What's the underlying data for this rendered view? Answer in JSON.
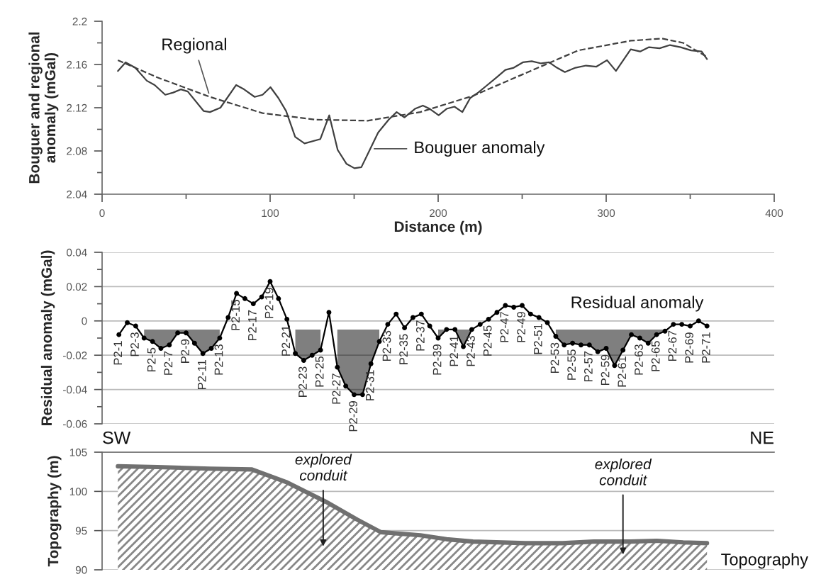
{
  "chart_data": [
    {
      "type": "line",
      "xlabel": "Distance (m)",
      "ylabel": "Bouguer and regional\nanomaly (mGal)",
      "xlim": [
        0,
        400
      ],
      "ylim": [
        2.04,
        2.2
      ],
      "xticks": [
        0,
        {
          "value": 50,
          "label": null
        },
        100,
        {
          "value": 150,
          "label": null
        },
        200,
        {
          "value": 250,
          "label": null
        },
        300,
        {
          "value": 350,
          "label": null
        },
        400
      ],
      "yticks": [
        2.04,
        {
          "value": 2.06,
          "label": null
        },
        2.08,
        {
          "value": 2.1,
          "label": null
        },
        2.12,
        {
          "value": 2.14,
          "label": null
        },
        2.16,
        {
          "value": 2.18,
          "label": null
        },
        2.2
      ],
      "grid": false,
      "line_style": "solid",
      "marker": "none",
      "series": [
        {
          "name": "Bouguer anomaly",
          "color": "#404040",
          "x": [
            9.4,
            14,
            19.7,
            26.6,
            31.3,
            37.6,
            42.3,
            47,
            51,
            60.4,
            64.2,
            70.4,
            79.8,
            84.5,
            90.8,
            95.5,
            100.2,
            104.9,
            109.5,
            114.9,
            120.5,
            129.9,
            135.2,
            140.2,
            145.5,
            150.2,
            154.3,
            159.6,
            164.3,
            170.6,
            175.3,
            180,
            186.2,
            190.9,
            195,
            200.3,
            205,
            209.7,
            214.4,
            219.1,
            223.8,
            228.5,
            234.7,
            240,
            245,
            250.4,
            255.7,
            261.3,
            266,
            270.7,
            275.4,
            281.7,
            288,
            294.2,
            300.5,
            305.8,
            314.6,
            320.2,
            325.5,
            331.8,
            338,
            344.3,
            350.5,
            356.8,
            360
          ],
          "values": [
            2.154,
            2.162,
            2.157,
            2.145,
            2.141,
            2.132,
            2.134,
            2.137,
            2.135,
            2.117,
            2.116,
            2.12,
            2.141,
            2.137,
            2.13,
            2.132,
            2.139,
            2.129,
            2.117,
            2.093,
            2.087,
            2.091,
            2.113,
            2.081,
            2.068,
            2.064,
            2.065,
            2.082,
            2.097,
            2.109,
            2.116,
            2.111,
            2.119,
            2.122,
            2.119,
            2.113,
            2.119,
            2.121,
            2.116,
            2.129,
            2.134,
            2.14,
            2.148,
            2.155,
            2.157,
            2.162,
            2.163,
            2.161,
            2.162,
            2.157,
            2.153,
            2.157,
            2.159,
            2.158,
            2.164,
            2.154,
            2.174,
            2.172,
            2.176,
            2.175,
            2.178,
            2.176,
            2.173,
            2.172,
            2.165
          ]
        },
        {
          "name": "Regional",
          "color": "#404040",
          "line_style": "dashed",
          "x": [
            9.4,
            32.9,
            64.2,
            95.5,
            126.8,
            158,
            189.4,
            220.7,
            252,
            283.3,
            314.6,
            333.3,
            345.8,
            360
          ],
          "values": [
            2.164,
            2.148,
            2.13,
            2.115,
            2.109,
            2.108,
            2.116,
            2.131,
            2.152,
            2.173,
            2.182,
            2.184,
            2.18,
            2.167
          ]
        }
      ]
    },
    {
      "type": "line",
      "ylabel": "Residual anomaly (mGal)",
      "xlim": [
        0,
        400
      ],
      "ylim": [
        -0.06,
        0.04
      ],
      "tick_labels": "y",
      "yticks": [
        -0.06,
        {
          "value": -0.05,
          "label": null
        },
        -0.04,
        {
          "value": -0.03,
          "label": null
        },
        -0.02,
        {
          "value": -0.01,
          "label": null
        },
        0,
        {
          "value": 0.01,
          "label": null
        },
        0.02,
        {
          "value": 0.03,
          "label": null
        },
        0.04
      ],
      "grid": "y",
      "marker": "circle",
      "line_style": "solid",
      "series": [
        {
          "name": "Residual anomaly",
          "color": "#000000",
          "x": [
            10,
            15,
            20,
            25,
            30,
            35,
            40,
            45,
            50,
            55,
            60,
            65,
            70,
            75,
            80,
            85,
            90,
            95,
            100,
            105,
            110,
            115,
            120,
            125,
            130,
            135,
            140,
            145,
            150,
            155,
            160,
            165,
            170,
            175,
            180,
            185,
            190,
            195,
            200,
            205,
            210,
            215,
            220,
            225,
            230,
            235,
            240,
            245,
            250,
            255,
            260,
            265,
            270,
            275,
            280,
            285,
            290,
            295,
            300,
            305,
            310,
            315,
            320,
            325,
            330,
            335,
            340,
            345,
            350,
            355,
            360
          ],
          "values": [
            -0.008,
            -0.001,
            -0.003,
            -0.01,
            -0.012,
            -0.016,
            -0.014,
            -0.007,
            -0.007,
            -0.013,
            -0.019,
            -0.016,
            -0.01,
            0.002,
            0.016,
            0.013,
            0.01,
            0.014,
            0.023,
            0.013,
            0.001,
            -0.019,
            -0.023,
            -0.02,
            -0.017,
            0.005,
            -0.027,
            -0.038,
            -0.043,
            -0.043,
            -0.025,
            -0.012,
            -0.002,
            0.004,
            -0.004,
            0.002,
            0.004,
            -0.003,
            -0.01,
            -0.005,
            -0.005,
            -0.015,
            -0.005,
            -0.002,
            0.001,
            0.005,
            0.009,
            0.008,
            0.009,
            0.004,
            0.002,
            -0.001,
            -0.009,
            -0.014,
            -0.013,
            -0.014,
            -0.014,
            -0.018,
            -0.016,
            -0.026,
            -0.017,
            -0.008,
            -0.01,
            -0.013,
            -0.008,
            -0.006,
            -0.002,
            -0.002,
            -0.003,
            0.0,
            -0.003
          ],
          "lower": [
            null,
            null,
            null,
            -0.01,
            -0.012,
            -0.016,
            -0.014,
            -0.007,
            -0.007,
            -0.013,
            -0.019,
            -0.016,
            -0.01,
            null,
            null,
            null,
            null,
            null,
            null,
            null,
            null,
            -0.019,
            -0.023,
            -0.02,
            -0.017,
            null,
            -0.027,
            -0.038,
            -0.043,
            -0.043,
            -0.025,
            -0.012,
            null,
            null,
            null,
            null,
            null,
            null,
            -0.01,
            -0.005,
            -0.005,
            -0.015,
            -0.005,
            null,
            null,
            null,
            null,
            null,
            null,
            null,
            null,
            null,
            -0.009,
            -0.014,
            -0.013,
            -0.014,
            -0.014,
            -0.018,
            -0.016,
            -0.026,
            -0.017,
            -0.008,
            -0.01,
            -0.013,
            -0.008,
            -0.006,
            null,
            null,
            null,
            null,
            null
          ],
          "upper": [
            null,
            null,
            null,
            -0.005,
            -0.005,
            -0.005,
            -0.005,
            -0.005,
            -0.005,
            -0.005,
            -0.005,
            -0.005,
            -0.005,
            null,
            null,
            null,
            null,
            null,
            null,
            null,
            null,
            -0.005,
            -0.005,
            -0.005,
            -0.005,
            null,
            -0.005,
            -0.005,
            -0.005,
            -0.005,
            -0.005,
            -0.005,
            null,
            null,
            null,
            null,
            null,
            null,
            -0.005,
            -0.005,
            -0.005,
            -0.005,
            -0.005,
            null,
            null,
            null,
            null,
            null,
            null,
            null,
            null,
            null,
            -0.005,
            -0.005,
            -0.005,
            -0.005,
            -0.005,
            -0.005,
            -0.005,
            -0.005,
            -0.005,
            -0.005,
            -0.005,
            -0.005,
            -0.005,
            -0.005,
            null,
            null,
            null,
            null,
            null
          ]
        }
      ],
      "annotations": [
        {
          "text": "P2-1",
          "x": 10,
          "y": -0.008
        },
        {
          "text": "P2-3",
          "x": 20,
          "y": -0.003
        },
        {
          "text": "P2-5",
          "x": 30,
          "y": -0.012
        },
        {
          "text": "P2-7",
          "x": 40,
          "y": -0.014
        },
        {
          "text": "P2-9",
          "x": 50,
          "y": -0.007
        },
        {
          "text": "P2-11",
          "x": 60,
          "y": -0.019
        },
        {
          "text": "P2-13",
          "x": 70,
          "y": -0.01
        },
        {
          "text": "P2-15",
          "x": 80,
          "y": 0.016
        },
        {
          "text": "P2-17",
          "x": 90,
          "y": 0.01
        },
        {
          "text": "P2-19",
          "x": 100,
          "y": 0.023
        },
        {
          "text": "P2-21",
          "x": 110,
          "y": 0.001
        },
        {
          "text": "P2-23",
          "x": 120,
          "y": -0.023
        },
        {
          "text": "P2-25",
          "x": 130,
          "y": -0.017
        },
        {
          "text": "P2-27",
          "x": 140,
          "y": -0.027
        },
        {
          "text": "P2-29",
          "x": 150,
          "y": -0.043
        },
        {
          "text": "P2-31",
          "x": 160,
          "y": -0.025
        },
        {
          "text": "P2-33",
          "x": 170,
          "y": -0.002
        },
        {
          "text": "P2-35",
          "x": 180,
          "y": -0.004
        },
        {
          "text": "P2-37",
          "x": 190,
          "y": 0.004
        },
        {
          "text": "P2-39",
          "x": 200,
          "y": -0.01
        },
        {
          "text": "P2-41",
          "x": 210,
          "y": -0.005
        },
        {
          "text": "P2-43",
          "x": 220,
          "y": -0.005
        },
        {
          "text": "P2-45",
          "x": 230,
          "y": 0.001
        },
        {
          "text": "P2-47",
          "x": 240,
          "y": 0.009
        },
        {
          "text": "P2-49",
          "x": 250,
          "y": 0.009
        },
        {
          "text": "P2-51",
          "x": 260,
          "y": 0.002
        },
        {
          "text": "P2-53",
          "x": 270,
          "y": -0.009
        },
        {
          "text": "P2-55",
          "x": 280,
          "y": -0.013
        },
        {
          "text": "P2-57",
          "x": 290,
          "y": -0.014
        },
        {
          "text": "P2-59",
          "x": 300,
          "y": -0.016
        },
        {
          "text": "P2-61",
          "x": 310,
          "y": -0.017
        },
        {
          "text": "P2-63",
          "x": 320,
          "y": -0.01
        },
        {
          "text": "P2-65",
          "x": 330,
          "y": -0.008
        },
        {
          "text": "P2-67",
          "x": 340,
          "y": -0.002
        },
        {
          "text": "P2-69",
          "x": 350,
          "y": -0.003
        },
        {
          "text": "P2-71",
          "x": 360,
          "y": -0.003
        }
      ]
    },
    {
      "type": "area",
      "ylabel": "Topography (m)",
      "xlim": [
        0,
        400
      ],
      "ylim": [
        90,
        105
      ],
      "tick_labels": "y",
      "yticks": [
        90,
        95,
        100,
        105
      ],
      "grid": "y",
      "series": [
        {
          "name": "Topography",
          "color": "#707070",
          "x": [
            9.4,
            32.9,
            64.2,
            89.2,
            109.5,
            133,
            151.8,
            165.9,
            189.4,
            205,
            220.7,
            252,
            274,
            292.6,
            314.6,
            330.2,
            345.8,
            360
          ],
          "values": [
            103.2,
            103.1,
            102.9,
            102.8,
            101.2,
            98.7,
            96.4,
            94.8,
            94.4,
            93.9,
            93.6,
            93.4,
            93.4,
            93.6,
            93.6,
            93.7,
            93.5,
            93.4
          ]
        }
      ],
      "annotations": [
        "SW",
        "NE",
        "explored\nconduit",
        "explored\nconduit"
      ]
    }
  ]
}
